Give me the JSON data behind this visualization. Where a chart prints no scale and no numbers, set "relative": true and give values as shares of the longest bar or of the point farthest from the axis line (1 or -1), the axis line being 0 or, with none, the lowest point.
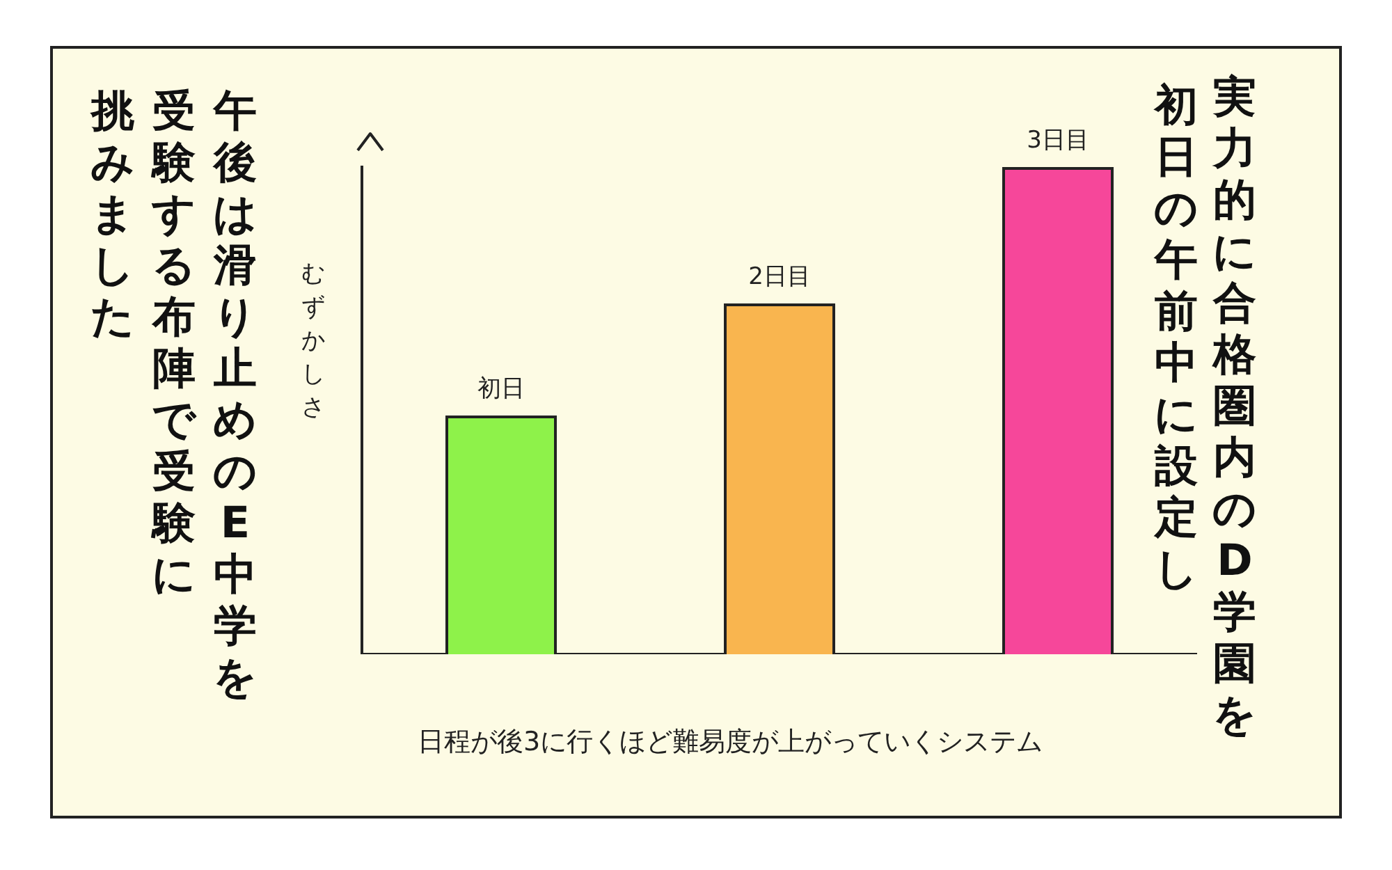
{
  "chart_data": {
    "type": "bar",
    "relative": true,
    "categories": [
      "初日",
      "2日目",
      "3日目"
    ],
    "values": [
      0.49,
      0.72,
      1
    ],
    "colors": [
      "#8ef24a",
      "#f9b54f",
      "#f6479a"
    ],
    "ylabel": "むずかしさ",
    "xlabel": "日程が後3に行くほど難易度が上がっていくシステム",
    "tick_labels": false,
    "grid": false,
    "legend": false,
    "annotations": [
      "実力的に合格圏内のD学園を",
      "初日の午前中に設定し",
      "午後は滑り止めのE中学を",
      "受験する布陣で受験に",
      "挑みました"
    ]
  }
}
